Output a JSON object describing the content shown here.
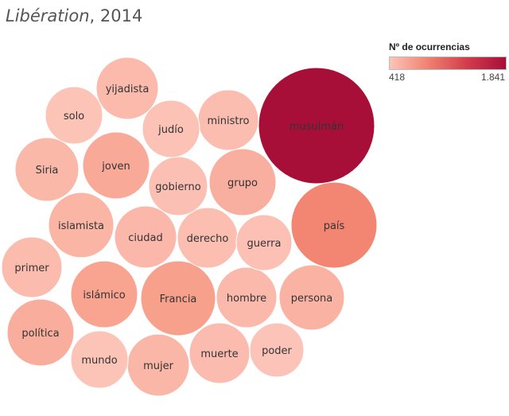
{
  "title": {
    "publication": "Libération",
    "year": ", 2014"
  },
  "legend": {
    "title": "Nº de ocurrencias",
    "min_label": "418",
    "max_label": "1.841",
    "color_low": "#fcc4b8",
    "color_high": "#a80f38"
  },
  "chart_data": {
    "type": "packed-bubble",
    "title": "Libération, 2014",
    "size_and_color_measure": "Nº de ocurrencias",
    "range": [
      418,
      1841
    ],
    "bubbles": [
      {
        "word": "musulmán",
        "value": 1841
      },
      {
        "word": "país",
        "value": 1050
      },
      {
        "word": "Francia",
        "value": 800
      },
      {
        "word": "islámico",
        "value": 760
      },
      {
        "word": "joven",
        "value": 700
      },
      {
        "word": "política",
        "value": 660
      },
      {
        "word": "grupo",
        "value": 640
      },
      {
        "word": "persona",
        "value": 600
      },
      {
        "word": "islamista",
        "value": 580
      },
      {
        "word": "mujer",
        "value": 560
      },
      {
        "word": "Siria",
        "value": 550
      },
      {
        "word": "ciudad",
        "value": 540
      },
      {
        "word": "hombre",
        "value": 530
      },
      {
        "word": "yijadista",
        "value": 520
      },
      {
        "word": "primer",
        "value": 510
      },
      {
        "word": "muerte",
        "value": 500
      },
      {
        "word": "ministro",
        "value": 490
      },
      {
        "word": "derecho",
        "value": 480
      },
      {
        "word": "gobierno",
        "value": 460
      },
      {
        "word": "guerra",
        "value": 450
      },
      {
        "word": "judío",
        "value": 440
      },
      {
        "word": "solo",
        "value": 430
      },
      {
        "word": "mundo",
        "value": 425
      },
      {
        "word": "poder",
        "value": 418
      }
    ]
  }
}
